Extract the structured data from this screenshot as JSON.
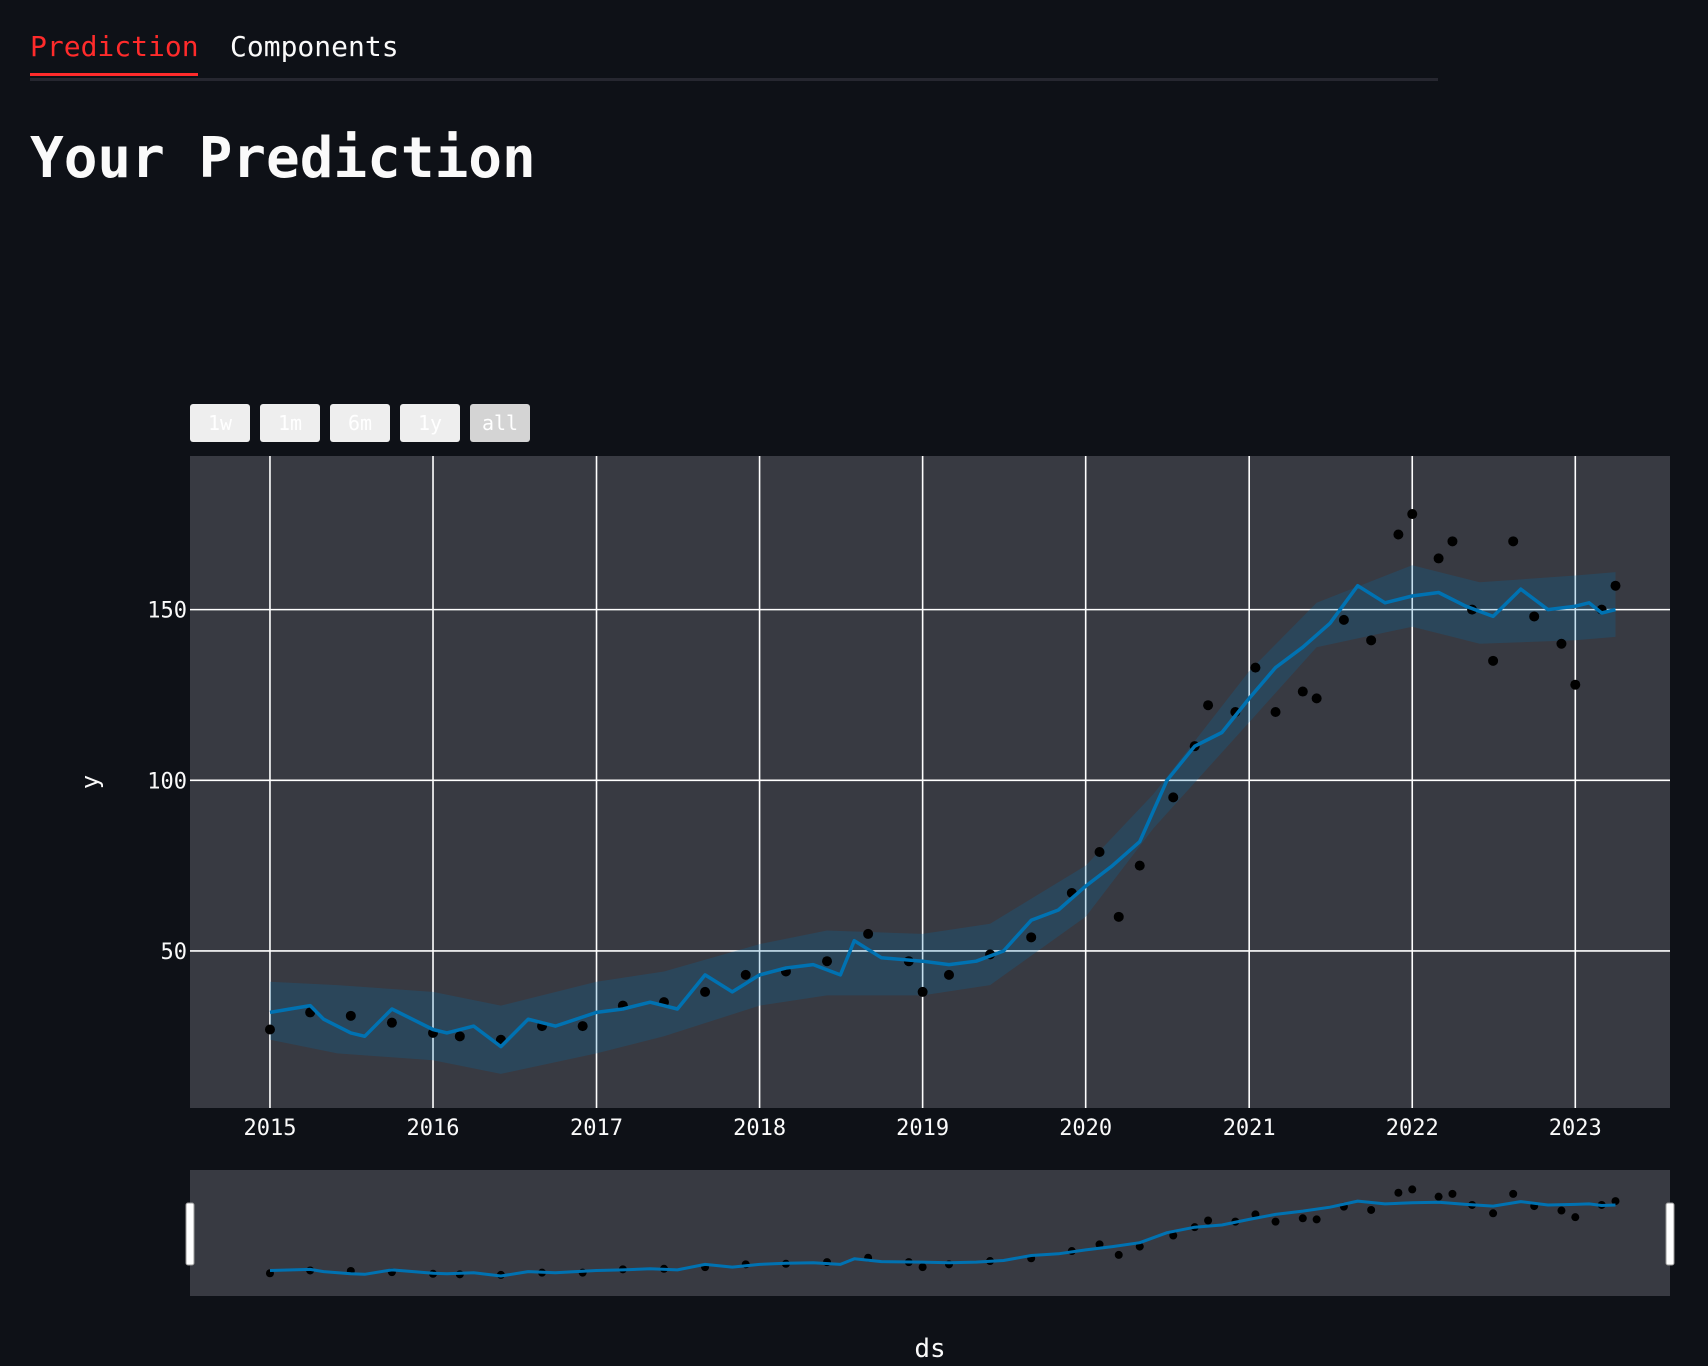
{
  "tabs": [
    {
      "label": "Prediction",
      "active": true
    },
    {
      "label": "Components",
      "active": false
    }
  ],
  "page_title": "Your Prediction",
  "range_selector": [
    "1w",
    "1m",
    "6m",
    "1y",
    "all"
  ],
  "colors": {
    "background": "#0e1117",
    "plot_bg": "#383a42",
    "grid": "#ffffff",
    "accent_tab": "#ff2b2b",
    "forecast_line": "#0072b2",
    "uncertainty_band": "#0072b2",
    "actual_points": "#000000"
  },
  "chart_data": {
    "type": "line",
    "title": "",
    "xlabel": "ds",
    "ylabel": "y",
    "x_ticks": [
      "2015",
      "2016",
      "2017",
      "2018",
      "2019",
      "2020",
      "2021",
      "2022",
      "2023"
    ],
    "y_ticks": [
      50,
      100,
      150
    ],
    "xlim": [
      "2014-07-06",
      "2023-08-01"
    ],
    "ylim": [
      4,
      195
    ],
    "grid": true,
    "series": [
      {
        "kind": "forecast",
        "x": [
          "2015-01-01",
          "2015-04-01",
          "2015-05-01",
          "2015-07-01",
          "2015-08-01",
          "2015-10-01",
          "2016-01-01",
          "2016-02-01",
          "2016-04-01",
          "2016-06-01",
          "2016-08-01",
          "2016-10-01",
          "2017-01-01",
          "2017-03-01",
          "2017-05-01",
          "2017-07-01",
          "2017-09-01",
          "2017-11-01",
          "2018-01-01",
          "2018-03-01",
          "2018-05-01",
          "2018-07-01",
          "2018-08-01",
          "2018-10-01",
          "2019-01-01",
          "2019-03-01",
          "2019-05-01",
          "2019-07-01",
          "2019-09-01",
          "2019-11-01",
          "2020-01-01",
          "2020-03-01",
          "2020-05-01",
          "2020-07-01",
          "2020-09-01",
          "2020-11-01",
          "2021-01-01",
          "2021-03-01",
          "2021-05-01",
          "2021-07-01",
          "2021-09-01",
          "2021-11-01",
          "2022-01-01",
          "2022-03-01",
          "2022-05-01",
          "2022-07-01",
          "2022-09-01",
          "2022-11-01",
          "2023-01-01",
          "2023-02-01",
          "2023-03-01",
          "2023-04-01"
        ],
        "y": [
          32,
          34,
          30,
          26,
          25,
          33,
          27,
          26,
          28,
          22,
          30,
          28,
          32,
          33,
          35,
          33,
          43,
          38,
          43,
          45,
          46,
          43,
          53,
          48,
          47,
          46,
          47,
          50,
          59,
          62,
          69,
          75,
          82,
          100,
          110,
          114,
          124,
          133,
          139,
          146,
          157,
          152,
          154,
          155,
          151,
          148,
          156,
          150,
          151,
          152,
          149,
          150
        ]
      },
      {
        "kind": "uncertainty",
        "name": "",
        "x": [
          "2015-01-01",
          "2015-06-01",
          "2016-01-01",
          "2016-06-01",
          "2017-01-01",
          "2017-06-01",
          "2018-01-01",
          "2018-06-01",
          "2019-01-01",
          "2019-06-01",
          "2020-01-01",
          "2020-06-01",
          "2021-01-01",
          "2021-06-01",
          "2022-01-01",
          "2022-06-01",
          "2023-01-01",
          "2023-04-01"
        ],
        "upper": [
          41,
          40,
          38,
          34,
          41,
          44,
          52,
          56,
          55,
          58,
          75,
          96,
          132,
          152,
          163,
          158,
          160,
          161
        ],
        "lower": [
          24,
          20,
          18,
          14,
          20,
          25,
          34,
          37,
          37,
          40,
          60,
          86,
          117,
          139,
          145,
          140,
          141,
          142
        ]
      },
      {
        "kind": "actual",
        "x": [
          "2015-01-01",
          "2015-04-01",
          "2015-07-01",
          "2015-10-01",
          "2016-01-01",
          "2016-03-01",
          "2016-06-01",
          "2016-09-01",
          "2016-12-01",
          "2017-03-01",
          "2017-06-01",
          "2017-09-01",
          "2017-12-01",
          "2018-03-01",
          "2018-06-01",
          "2018-09-01",
          "2018-12-01",
          "2019-01-01",
          "2019-03-01",
          "2019-06-01",
          "2019-09-01",
          "2019-12-01",
          "2020-02-01",
          "2020-03-15",
          "2020-05-01",
          "2020-07-15",
          "2020-09-01",
          "2020-10-01",
          "2020-12-01",
          "2021-01-15",
          "2021-03-01",
          "2021-05-01",
          "2021-06-01",
          "2021-08-01",
          "2021-10-01",
          "2021-12-01",
          "2022-01-01",
          "2022-03-01",
          "2022-04-01",
          "2022-05-15",
          "2022-07-01",
          "2022-08-15",
          "2022-10-01",
          "2022-12-01",
          "2023-01-01",
          "2023-03-01",
          "2023-04-01"
        ],
        "y": [
          27,
          32,
          31,
          29,
          26,
          25,
          24,
          28,
          28,
          34,
          35,
          38,
          43,
          44,
          47,
          55,
          47,
          38,
          43,
          49,
          54,
          67,
          79,
          60,
          75,
          95,
          110,
          122,
          120,
          133,
          120,
          126,
          124,
          147,
          141,
          172,
          178,
          165,
          170,
          150,
          135,
          170,
          148,
          140,
          128,
          150,
          157
        ]
      }
    ]
  }
}
